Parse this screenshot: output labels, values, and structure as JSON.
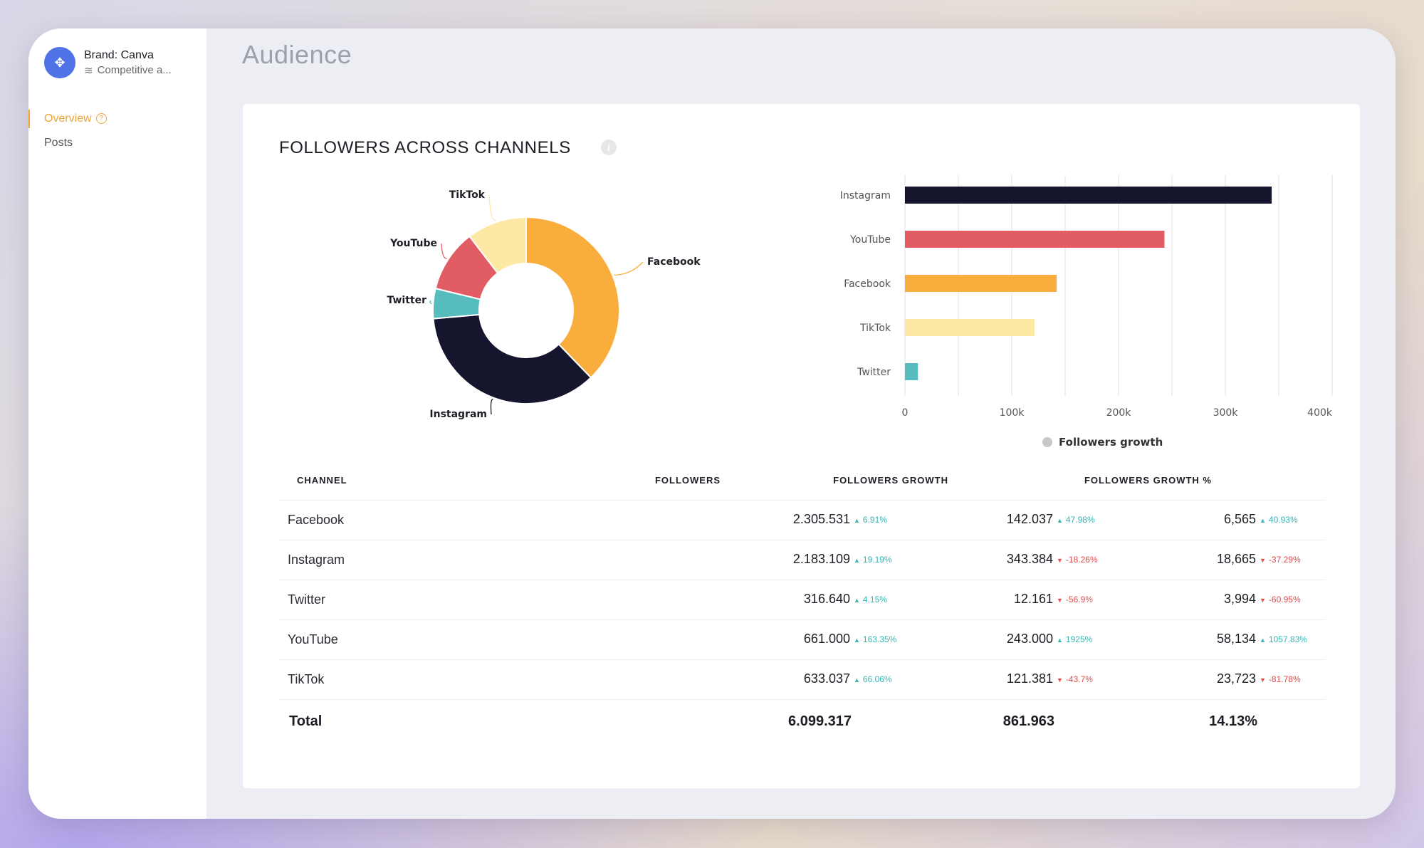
{
  "brand": {
    "name": "Brand: Canva",
    "subtitle": "Competitive a..."
  },
  "sidebar": {
    "items": [
      {
        "label": "Overview",
        "active": true
      },
      {
        "label": "Posts",
        "active": false
      }
    ]
  },
  "page": {
    "title": "Audience"
  },
  "card": {
    "title": "FOLLOWERS ACROSS CHANNELS",
    "info_icon": "i"
  },
  "colors": {
    "Facebook": "#f9ad3c",
    "Instagram": "#16152e",
    "Twitter": "#57bcbe",
    "YouTube": "#e15d63",
    "TikTok": "#fde9a4"
  },
  "chart_data": [
    {
      "type": "pie",
      "variant": "donut",
      "slices": [
        {
          "label": "Facebook",
          "value": 2305531
        },
        {
          "label": "Instagram",
          "value": 2183109
        },
        {
          "label": "Twitter",
          "value": 316640
        },
        {
          "label": "YouTube",
          "value": 661000
        },
        {
          "label": "TikTok",
          "value": 633037
        }
      ]
    },
    {
      "type": "bar",
      "orientation": "horizontal",
      "categories": [
        "Instagram",
        "YouTube",
        "Facebook",
        "TikTok",
        "Twitter"
      ],
      "values": [
        343384,
        243000,
        142037,
        121381,
        12161
      ],
      "xlim": [
        0,
        400000
      ],
      "ticks": [
        "0",
        "100k",
        "200k",
        "300k",
        "400k"
      ],
      "legend": "Followers growth",
      "grid": true
    }
  ],
  "table": {
    "headers": [
      "CHANNEL",
      "FOLLOWERS",
      "FOLLOWERS GROWTH",
      "FOLLOWERS GROWTH %"
    ],
    "rows": [
      {
        "channel": "Facebook",
        "followers": "2.305.531",
        "followers_delta": "6.91%",
        "followers_dir": "up",
        "growth": "142.037",
        "growth_delta": "47.98%",
        "growth_dir": "up",
        "growth_pct": "6,565",
        "growth_pct_delta": "40.93%",
        "growth_pct_dir": "up"
      },
      {
        "channel": "Instagram",
        "followers": "2.183.109",
        "followers_delta": "19.19%",
        "followers_dir": "up",
        "growth": "343.384",
        "growth_delta": "-18.26%",
        "growth_dir": "down",
        "growth_pct": "18,665",
        "growth_pct_delta": "-37.29%",
        "growth_pct_dir": "down"
      },
      {
        "channel": "Twitter",
        "followers": "316.640",
        "followers_delta": "4.15%",
        "followers_dir": "up",
        "growth": "12.161",
        "growth_delta": "-56.9%",
        "growth_dir": "down",
        "growth_pct": "3,994",
        "growth_pct_delta": "-60.95%",
        "growth_pct_dir": "down"
      },
      {
        "channel": "YouTube",
        "followers": "661.000",
        "followers_delta": "163.35%",
        "followers_dir": "up",
        "growth": "243.000",
        "growth_delta": "1925%",
        "growth_dir": "up",
        "growth_pct": "58,134",
        "growth_pct_delta": "1057.83%",
        "growth_pct_dir": "up"
      },
      {
        "channel": "TikTok",
        "followers": "633.037",
        "followers_delta": "66.06%",
        "followers_dir": "up",
        "growth": "121.381",
        "growth_delta": "-43.7%",
        "growth_dir": "down",
        "growth_pct": "23,723",
        "growth_pct_delta": "-81.78%",
        "growth_pct_dir": "down"
      }
    ],
    "total": {
      "label": "Total",
      "followers": "6.099.317",
      "growth": "861.963",
      "growth_pct": "14.13%"
    }
  }
}
